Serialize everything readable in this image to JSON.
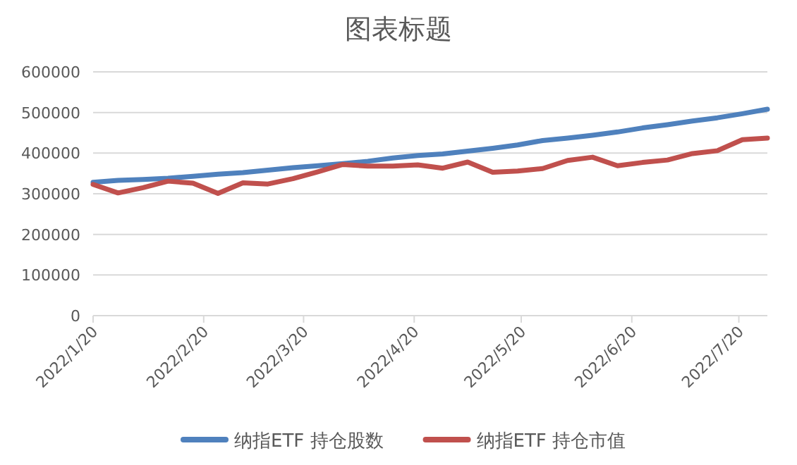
{
  "chart_data": {
    "type": "line",
    "title": "图表标题",
    "x": [
      "2022-01-20",
      "2022-01-27",
      "2022-02-03",
      "2022-02-10",
      "2022-02-17",
      "2022-02-24",
      "2022-03-03",
      "2022-03-10",
      "2022-03-17",
      "2022-03-24",
      "2022-03-31",
      "2022-04-07",
      "2022-04-14",
      "2022-04-21",
      "2022-04-28",
      "2022-05-05",
      "2022-05-12",
      "2022-05-19",
      "2022-05-26",
      "2022-06-02",
      "2022-06-09",
      "2022-06-16",
      "2022-06-23",
      "2022-06-30",
      "2022-07-07",
      "2022-07-14",
      "2022-07-21",
      "2022-07-28"
    ],
    "series": [
      {
        "name": "纳指ETF 持仓股数",
        "color": "#4f81bd",
        "values": [
          328000,
          333000,
          335000,
          338000,
          343000,
          348000,
          352000,
          358000,
          364000,
          369000,
          374000,
          380000,
          388000,
          394000,
          398000,
          405000,
          412000,
          420000,
          431000,
          437000,
          444000,
          452000,
          462000,
          470000,
          479000,
          487000,
          497000,
          508000
        ]
      },
      {
        "name": "纳指ETF 持仓市值",
        "color": "#c0504d",
        "values": [
          323000,
          302000,
          315000,
          331000,
          326000,
          301000,
          327000,
          324000,
          337000,
          354000,
          372000,
          368000,
          368000,
          371000,
          363000,
          378000,
          353000,
          356000,
          362000,
          382000,
          390000,
          369000,
          377000,
          383000,
          399000,
          406000,
          433000,
          437000
        ]
      }
    ],
    "xlim": [
      "2022-01-20",
      "2022-07-28"
    ],
    "xticks": [
      {
        "value": "2022-01-20",
        "label": "2022/1/20"
      },
      {
        "value": "2022-02-20",
        "label": "2022/2/20"
      },
      {
        "value": "2022-03-20",
        "label": "2022/3/20"
      },
      {
        "value": "2022-04-20",
        "label": "2022/4/20"
      },
      {
        "value": "2022-05-20",
        "label": "2022/5/20"
      },
      {
        "value": "2022-06-20",
        "label": "2022/6/20"
      },
      {
        "value": "2022-07-20",
        "label": "2022/7/20"
      }
    ],
    "ylim": [
      0,
      600000
    ],
    "yticks": [
      0,
      100000,
      200000,
      300000,
      400000,
      500000,
      600000
    ],
    "grid": "y",
    "legend": "bottom",
    "marker": "none",
    "line_style": "solid"
  }
}
